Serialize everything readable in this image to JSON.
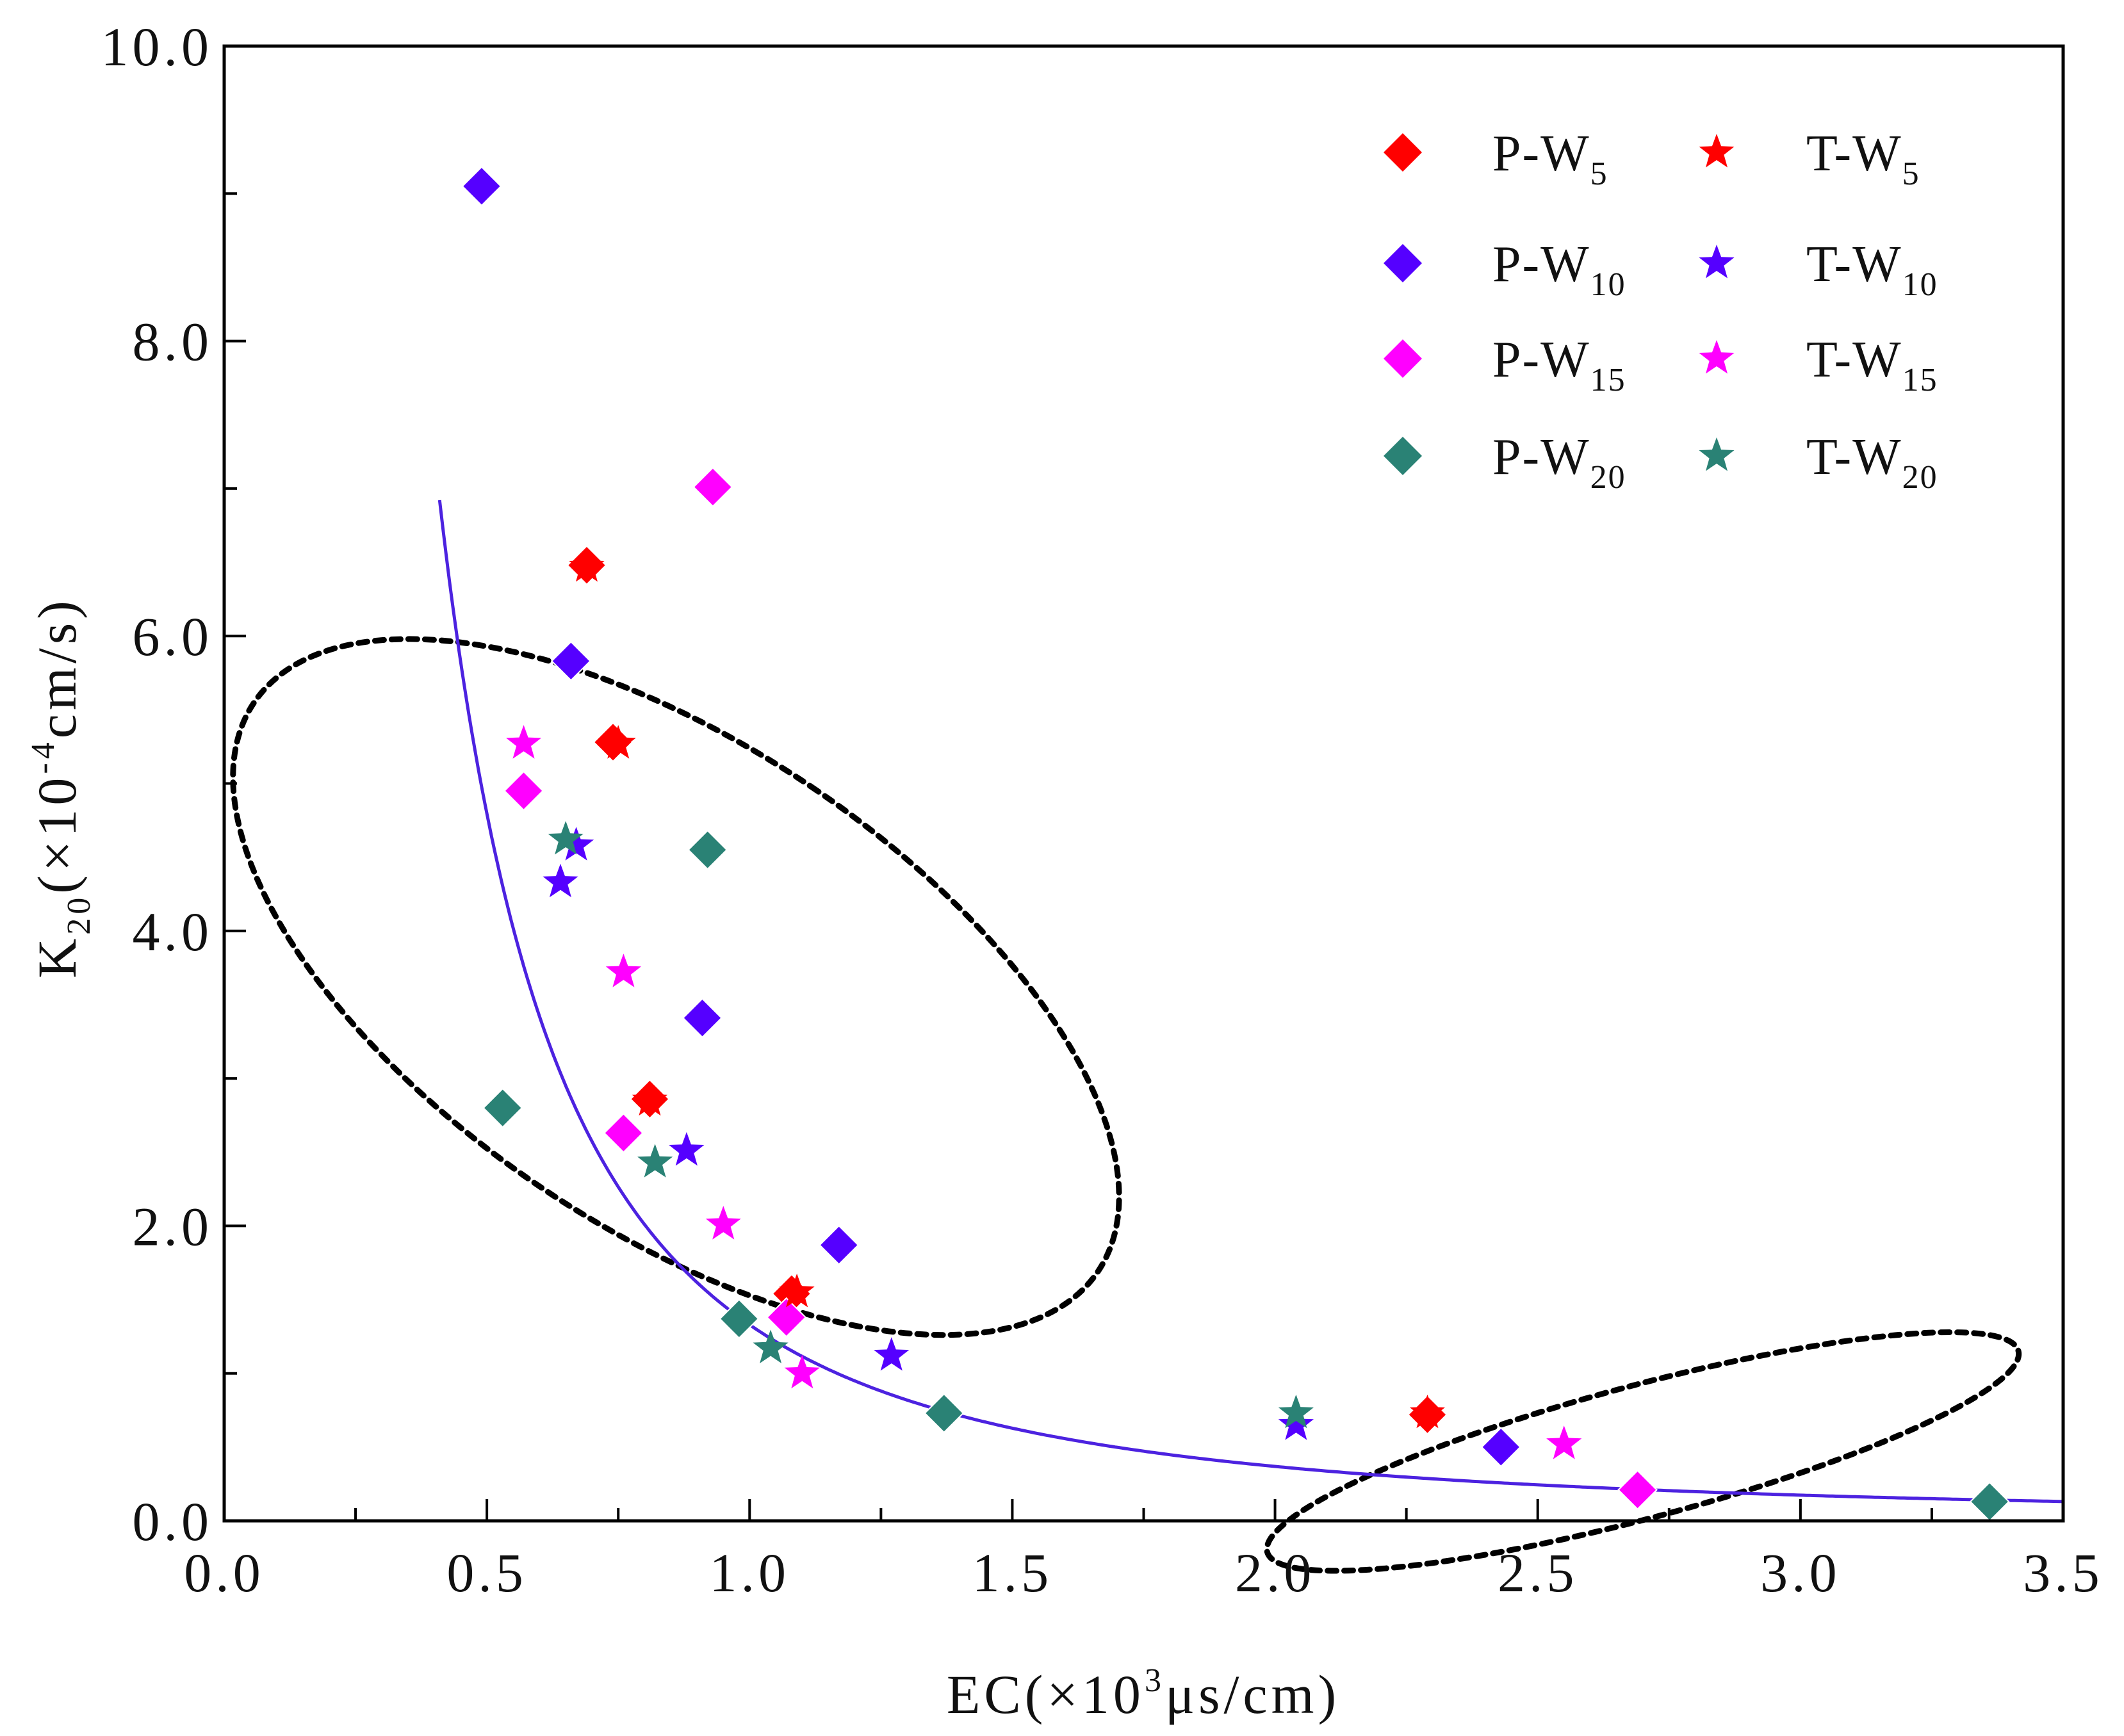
{
  "chart_data": {
    "type": "scatter",
    "title": "",
    "xlabel": {
      "main": "EC(×10",
      "sup": "3",
      "unit": "μs/cm)"
    },
    "ylabel": {
      "main": "K",
      "sub": "20",
      "mid": "(×10",
      "sup": "-4",
      "unit": "cm/s)"
    },
    "xlim": [
      0.0,
      3.5
    ],
    "ylim": [
      0.0,
      10.0
    ],
    "xticks": [
      "0.0",
      "0.5",
      "1.0",
      "1.5",
      "2.0",
      "2.5",
      "3.0",
      "3.5"
    ],
    "yticks": [
      "0.0",
      "2.0",
      "4.0",
      "6.0",
      "8.0",
      "10.0"
    ],
    "grid": false,
    "legend_position": "top-right",
    "colors": {
      "W5": "#ff0000",
      "W10": "#5500ff",
      "W15": "#ff00ff",
      "W20": "#2a8275",
      "fit": "#4c22e0"
    },
    "series": [
      {
        "name": "P-W",
        "sub": "5",
        "marker": "diamond",
        "color": "#ff0000",
        "x": [
          0.69,
          0.74,
          0.81,
          1.08,
          2.29
        ],
        "y": [
          6.48,
          5.28,
          2.86,
          1.54,
          0.72
        ]
      },
      {
        "name": "P-W",
        "sub": "10",
        "marker": "diamond",
        "color": "#5500ff",
        "x": [
          0.49,
          0.66,
          0.91,
          1.17,
          2.43
        ],
        "y": [
          9.05,
          5.83,
          3.41,
          1.87,
          0.5
        ]
      },
      {
        "name": "P-W",
        "sub": "15",
        "marker": "diamond",
        "color": "#ff00ff",
        "x": [
          0.93,
          0.57,
          0.76,
          1.07,
          2.69
        ],
        "y": [
          7.01,
          4.95,
          2.63,
          1.38,
          0.21
        ]
      },
      {
        "name": "P-W",
        "sub": "20",
        "marker": "diamond",
        "color": "#2a8275",
        "x": [
          0.53,
          0.92,
          0.98,
          1.37,
          3.36
        ],
        "y": [
          2.8,
          4.55,
          1.37,
          0.73,
          0.13
        ]
      },
      {
        "name": "T-W",
        "sub": "5",
        "marker": "star",
        "color": "#ff0000",
        "x": [
          0.69,
          0.75,
          0.81,
          1.09,
          2.29
        ],
        "y": [
          6.47,
          5.27,
          2.85,
          1.55,
          0.73
        ]
      },
      {
        "name": "T-W",
        "sub": "10",
        "marker": "star",
        "color": "#5500ff",
        "x": [
          0.64,
          0.67,
          0.88,
          1.27,
          2.04
        ],
        "y": [
          4.33,
          4.58,
          2.51,
          1.12,
          0.65
        ]
      },
      {
        "name": "T-W",
        "sub": "15",
        "marker": "star",
        "color": "#ff00ff",
        "x": [
          0.57,
          0.76,
          0.95,
          1.1,
          2.55
        ],
        "y": [
          5.27,
          3.72,
          2.01,
          1.0,
          0.52
        ]
      },
      {
        "name": "T-W",
        "sub": "20",
        "marker": "star",
        "color": "#2a8275",
        "x": [
          0.65,
          0.82,
          1.04,
          2.04
        ],
        "y": [
          4.62,
          2.43,
          1.17,
          0.73
        ]
      }
    ],
    "fit_curve": {
      "type": "power",
      "a": 1.33,
      "b": -1.85,
      "color": "#4c22e0",
      "x_range": [
        0.41,
        3.5
      ]
    },
    "annotations": [
      {
        "type": "dashed-ellipse",
        "cx": 0.86,
        "cy": 3.62,
        "rx": 0.46,
        "ry": 3.45,
        "rotation_deg": -56
      },
      {
        "type": "dashed-ellipse",
        "cx": 2.7,
        "cy": 0.47,
        "rx": 0.74,
        "ry": 0.45,
        "rotation_deg": -15
      }
    ]
  }
}
